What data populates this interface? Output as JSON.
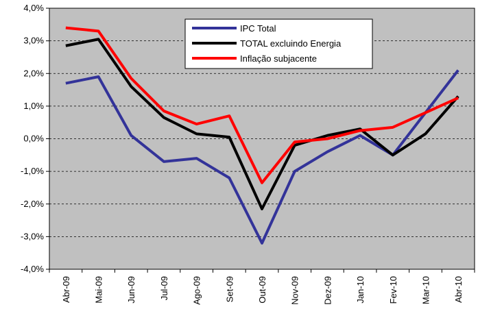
{
  "chart_data": {
    "type": "line",
    "categories": [
      "Abr-09",
      "Mai-09",
      "Jun-09",
      "Jul-09",
      "Ago-09",
      "Set-09",
      "Out-09",
      "Nov-09",
      "Dez-09",
      "Jan-10",
      "Fev-10",
      "Mar-10",
      "Abr-10"
    ],
    "series": [
      {
        "name": "IPC Total",
        "color": "#333399",
        "values": [
          1.7,
          1.9,
          0.1,
          -0.7,
          -0.6,
          -1.2,
          -3.2,
          -1.0,
          -0.4,
          0.1,
          -0.5,
          0.8,
          2.1
        ]
      },
      {
        "name": "TOTAL excluindo  Energia",
        "color": "#000000",
        "values": [
          2.85,
          3.05,
          1.6,
          0.65,
          0.15,
          0.05,
          -2.15,
          -0.2,
          0.1,
          0.3,
          -0.5,
          0.15,
          1.3
        ]
      },
      {
        "name": "Inflação subjacente",
        "color": "#ff0000",
        "values": [
          3.4,
          3.3,
          1.85,
          0.85,
          0.45,
          0.7,
          -1.35,
          -0.1,
          0.0,
          0.25,
          0.35,
          0.8,
          1.25
        ]
      }
    ],
    "ylim": [
      -4,
      4
    ],
    "yticks": [
      {
        "value": -4,
        "label": "-4,0%"
      },
      {
        "value": -3,
        "label": "-3,0%"
      },
      {
        "value": -2,
        "label": "-2,0%"
      },
      {
        "value": -1,
        "label": "-1,0%"
      },
      {
        "value": 0,
        "label": "0,0%"
      },
      {
        "value": 1,
        "label": "1,0%"
      },
      {
        "value": 2,
        "label": "2,0%"
      },
      {
        "value": 3,
        "label": "3,0%"
      },
      {
        "value": 4,
        "label": "4,0%"
      }
    ],
    "grid": true,
    "background": "#c0c0c0"
  }
}
